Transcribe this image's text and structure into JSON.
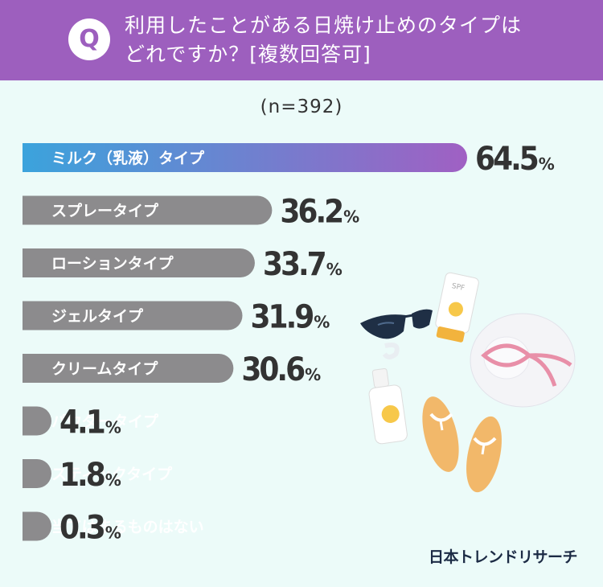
{
  "header": {
    "badge": "Q",
    "line1": "利用したことがある日焼け止めのタイプは",
    "line2": "どれですか？[複数回答可]"
  },
  "sample": "(n=392)",
  "brand": "日本トレンドリサーチ",
  "colors": {
    "header_bg": "#9d5fbe",
    "bg": "#ecfbf9",
    "bar_gray": "#8c8b8d",
    "highlight_start": "#3ba3dc",
    "highlight_end": "#a060c3",
    "value_text": "#333333"
  },
  "chart_data": {
    "type": "bar",
    "orientation": "horizontal",
    "unit": "%",
    "categories": [
      "ミルク（乳液）タイプ",
      "スプレータイプ",
      "ローションタイプ",
      "ジェルタイプ",
      "クリームタイプ",
      "パウダータイプ",
      "スティックタイプ",
      "当てはまるものはない"
    ],
    "values": [
      64.5,
      36.2,
      33.7,
      31.9,
      30.6,
      4.1,
      1.8,
      0.3
    ],
    "value_labels": [
      "64.5",
      "36.2",
      "33.7",
      "31.9",
      "30.6",
      "4.1",
      "1.8",
      "0.3"
    ],
    "highlighted_index": 0,
    "xlim": [
      0,
      64.5
    ]
  }
}
